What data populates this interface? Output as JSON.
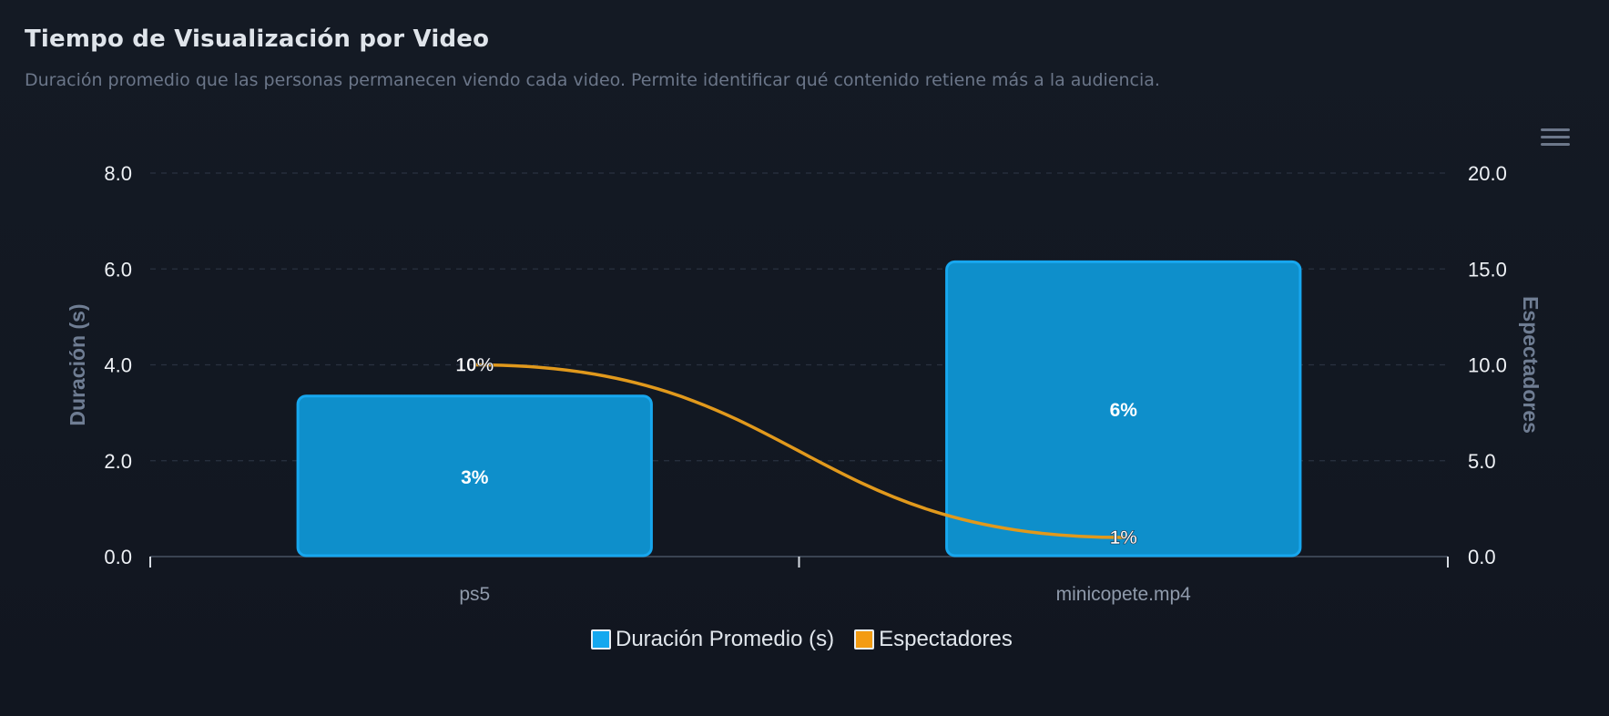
{
  "header": {
    "title": "Tiempo de Visualización por Video",
    "subtitle": "Duración promedio que las personas permanecen viendo cada video. Permite identificar qué contenido retiene más a la audiencia."
  },
  "toolbar": {
    "menu_icon": "hamburger-menu-icon"
  },
  "colors": {
    "bar_fill": "#0e8fcb",
    "bar_border": "#17a7ef",
    "line": "#e1991c",
    "legend_duracion": "#14a8ef",
    "legend_espectadores": "#f39c12",
    "grid": "#2a3240",
    "axis_text": "#eef1f5",
    "axis_title": "#6f7d93",
    "category_text": "#8f9aab"
  },
  "legend": [
    {
      "label": "Duración Promedio (s)",
      "color": "#14a8ef"
    },
    {
      "label": "Espectadores",
      "color": "#f39c12"
    }
  ],
  "chart_data": {
    "type": "bar",
    "categories": [
      "ps5",
      "minicopete.mp4"
    ],
    "series": [
      {
        "name": "Duración Promedio (s)",
        "type": "bar",
        "axis": "left",
        "values": [
          3.35,
          6.15
        ],
        "labels": [
          "3%",
          "6%"
        ]
      },
      {
        "name": "Espectadores",
        "type": "line",
        "axis": "right",
        "values": [
          10,
          1
        ],
        "labels": [
          "10%",
          "1%"
        ]
      }
    ],
    "ylabel": "Duración (s)",
    "y2label": "Espectadores",
    "ylim": [
      0,
      8
    ],
    "y2lim": [
      0,
      20
    ],
    "yticks": [
      "0.0",
      "2.0",
      "4.0",
      "6.0",
      "8.0"
    ],
    "y2ticks": [
      "0.0",
      "5.0",
      "10.0",
      "15.0",
      "20.0"
    ],
    "grid": true,
    "legend_position": "bottom"
  }
}
